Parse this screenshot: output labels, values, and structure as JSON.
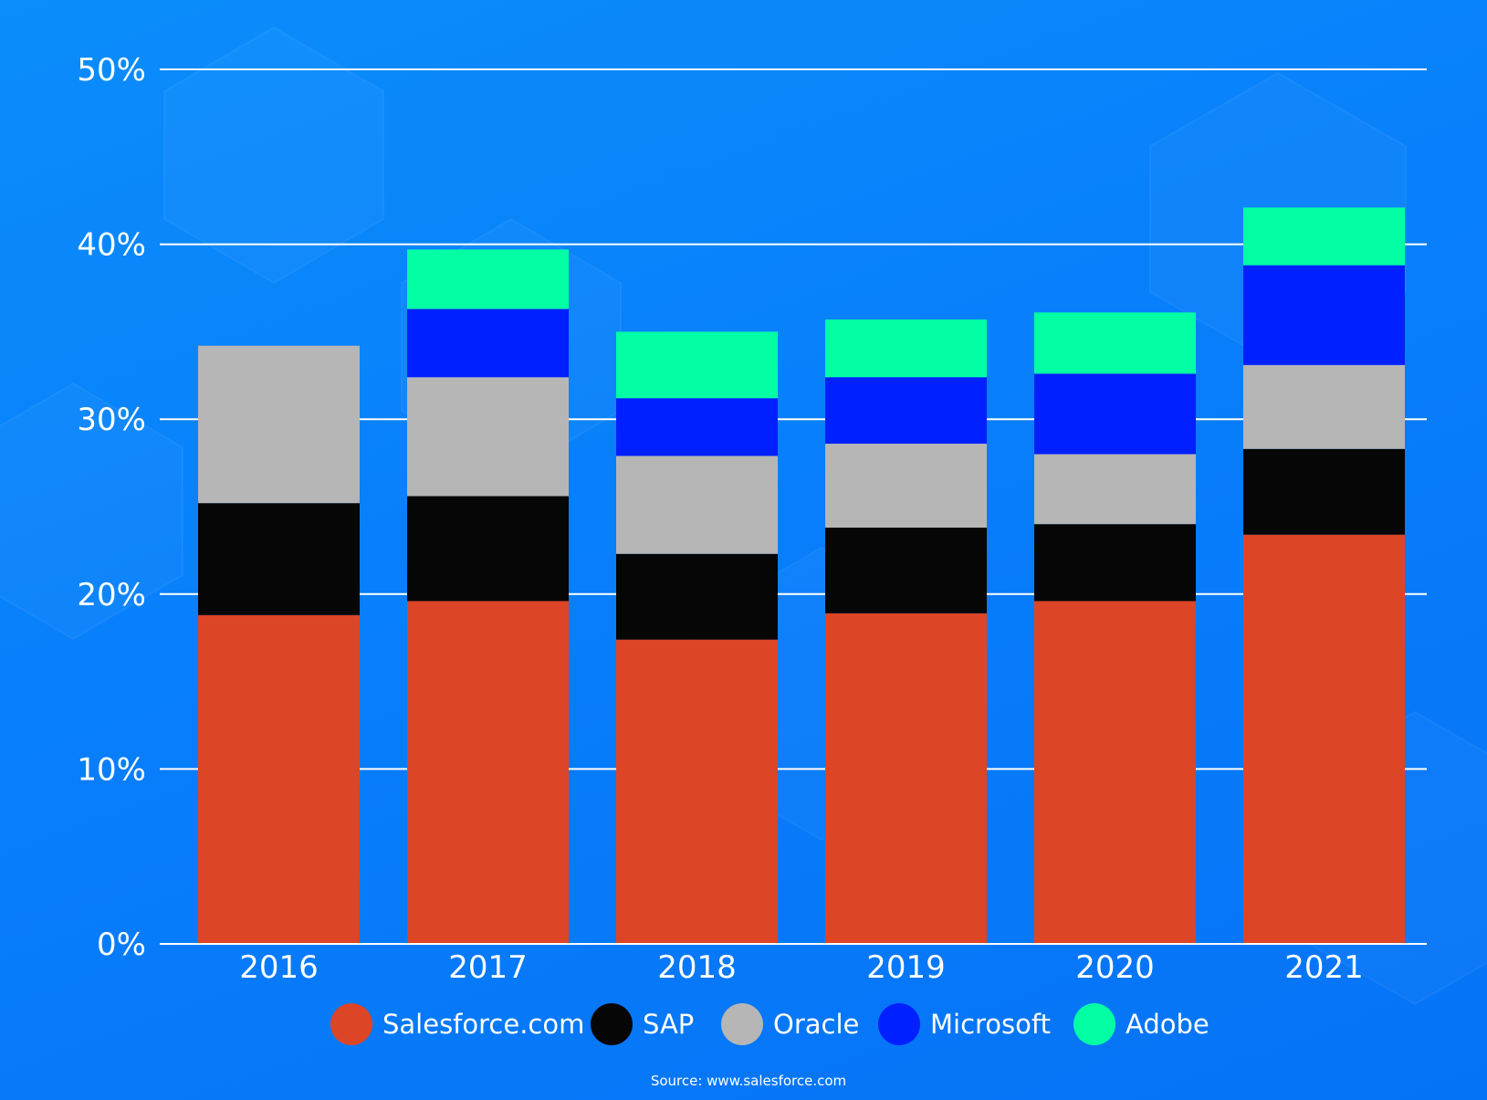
{
  "chart_data": {
    "type": "bar",
    "stacked": true,
    "categories": [
      "2016",
      "2017",
      "2018",
      "2019",
      "2020",
      "2021"
    ],
    "series": [
      {
        "name": "Salesforce.com",
        "color": "#dd4527",
        "values": [
          18.8,
          19.6,
          17.4,
          18.9,
          19.6,
          23.4
        ]
      },
      {
        "name": "SAP",
        "color": "#070606",
        "values": [
          6.4,
          6.0,
          4.9,
          4.9,
          4.4,
          4.9
        ]
      },
      {
        "name": "Oracle",
        "color": "#b6b6b6",
        "values": [
          9.0,
          6.8,
          5.6,
          4.8,
          4.0,
          4.8
        ]
      },
      {
        "name": "Microsoft",
        "color": "#0120ff",
        "values": [
          0,
          3.9,
          3.3,
          3.8,
          4.6,
          5.7
        ]
      },
      {
        "name": "Adobe",
        "color": "#02ffa4",
        "values": [
          0,
          3.4,
          3.8,
          3.3,
          3.5,
          3.3
        ]
      }
    ],
    "y_ticks": [
      "0%",
      "10%",
      "20%",
      "30%",
      "40%",
      "50%"
    ],
    "ylim": [
      0,
      50
    ],
    "grid": true,
    "legend_position": "bottom",
    "source": "Source: www.salesforce.com"
  }
}
